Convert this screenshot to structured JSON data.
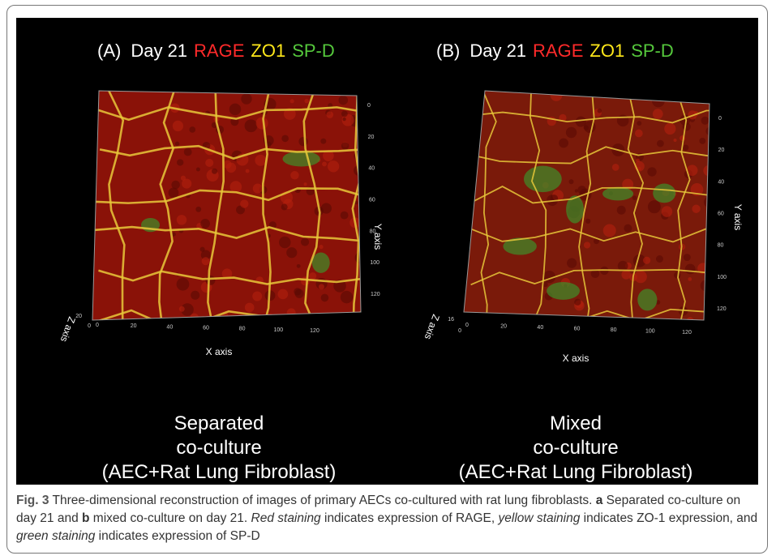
{
  "figure": {
    "panels": [
      {
        "label": "(A)",
        "day": "Day 21",
        "stains": [
          {
            "text": "RAGE",
            "color": "#ff2a2a"
          },
          {
            "text": "ZO1",
            "color": "#ffe81a"
          },
          {
            "text": "SP-D",
            "color": "#55c83c"
          }
        ],
        "x_axis": "X axis",
        "y_axis": "Y axis",
        "z_axis": "Z axis",
        "x_ticks": [
          "0",
          "20",
          "40",
          "60",
          "80",
          "100",
          "120"
        ],
        "y_ticks": [
          "0",
          "20",
          "40",
          "60",
          "80",
          "100",
          "120"
        ],
        "z_ticks": [
          "20",
          "0"
        ],
        "description": [
          "Separated",
          "co-culture",
          "(AEC+Rat Lung Fibroblast)"
        ]
      },
      {
        "label": "(B)",
        "day": "Day 21",
        "stains": [
          {
            "text": "RAGE",
            "color": "#ff2a2a"
          },
          {
            "text": "ZO1",
            "color": "#ffe81a"
          },
          {
            "text": "SP-D",
            "color": "#55c83c"
          }
        ],
        "x_axis": "X axis",
        "y_axis": "Y axis",
        "z_axis": "Z axis",
        "x_ticks": [
          "0",
          "20",
          "40",
          "60",
          "80",
          "100",
          "120"
        ],
        "y_ticks": [
          "0",
          "20",
          "40",
          "60",
          "80",
          "100",
          "120"
        ],
        "z_ticks": [
          "16",
          "0"
        ],
        "description": [
          "Mixed",
          "co-culture",
          "(AEC+Rat Lung Fibroblast)"
        ]
      }
    ],
    "caption": [
      {
        "text": "Fig. 3",
        "style": "bold"
      },
      {
        "text": " Three-dimensional reconstruction of images of primary AECs co-cultured with rat lung fibroblasts. ",
        "style": "normal"
      },
      {
        "text": "a",
        "style": "bold"
      },
      {
        "text": " Separated co-culture on day 21 and ",
        "style": "normal"
      },
      {
        "text": "b",
        "style": "bold"
      },
      {
        "text": " mixed co-culture on day 21. ",
        "style": "normal"
      },
      {
        "text": "Red staining",
        "style": "italic"
      },
      {
        "text": " indicates expression of RAGE, ",
        "style": "normal"
      },
      {
        "text": "yellow staining",
        "style": "italic"
      },
      {
        "text": " indicates ZO-1 expression, and ",
        "style": "normal"
      },
      {
        "text": "green staining",
        "style": "italic"
      },
      {
        "text": " indicates expression of SP-D",
        "style": "normal"
      }
    ]
  }
}
